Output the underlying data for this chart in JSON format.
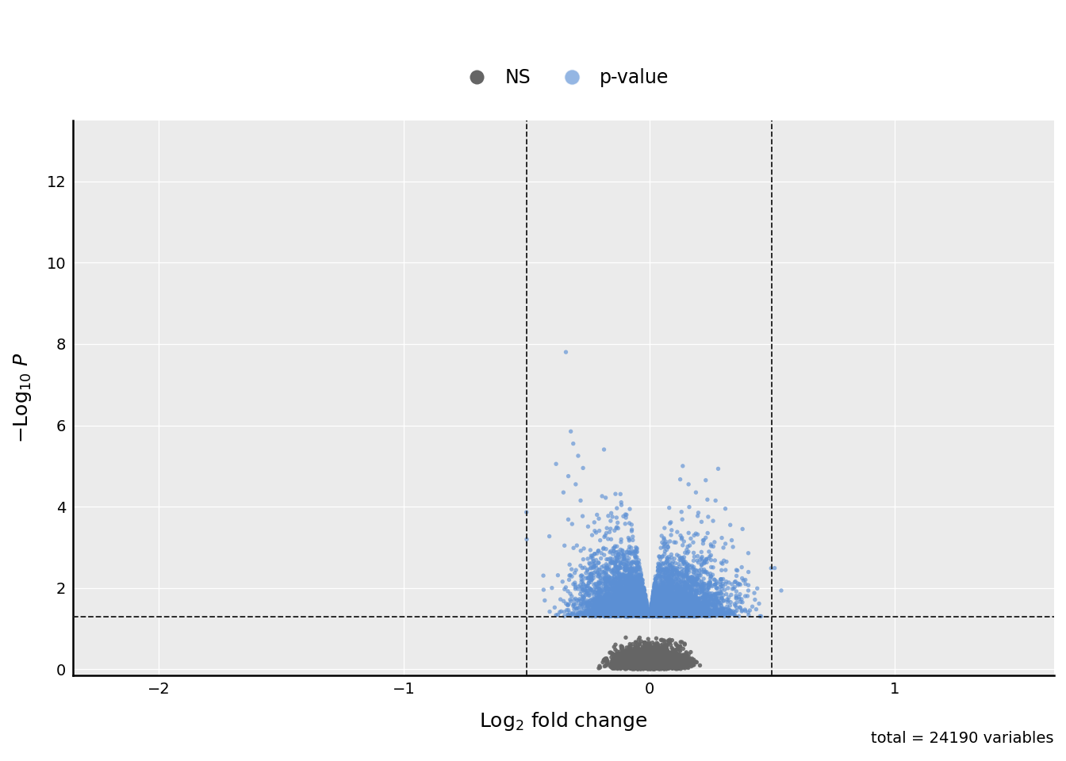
{
  "title": "",
  "xlabel": "Log\\u2082 fold change",
  "ylabel": "\\u2212Log\\u2081\\u2080 P",
  "xlim": [
    -2.35,
    1.65
  ],
  "ylim": [
    -0.15,
    13.5
  ],
  "xticks": [
    -2,
    -1,
    0,
    1
  ],
  "yticks": [
    0,
    2,
    4,
    6,
    8,
    10,
    12
  ],
  "vline_x": [
    -0.5,
    0.5
  ],
  "hline_y": 1.301,
  "ns_color": "#656565",
  "sig_color": "#5b8fd4",
  "sig_alpha": 0.65,
  "ns_alpha": 0.9,
  "point_size": 15,
  "legend_ns_label": "NS",
  "legend_sig_label": "p-value",
  "annotation_text": "total = 24190 variables",
  "n_total": 24190,
  "random_seed": 42,
  "background_color": "#ffffff",
  "plot_bg_color": "#ebebeb",
  "grid_color": "#ffffff",
  "vline_color": "#1a1a1a",
  "hline_color": "#1a1a1a",
  "spine_color": "#000000"
}
